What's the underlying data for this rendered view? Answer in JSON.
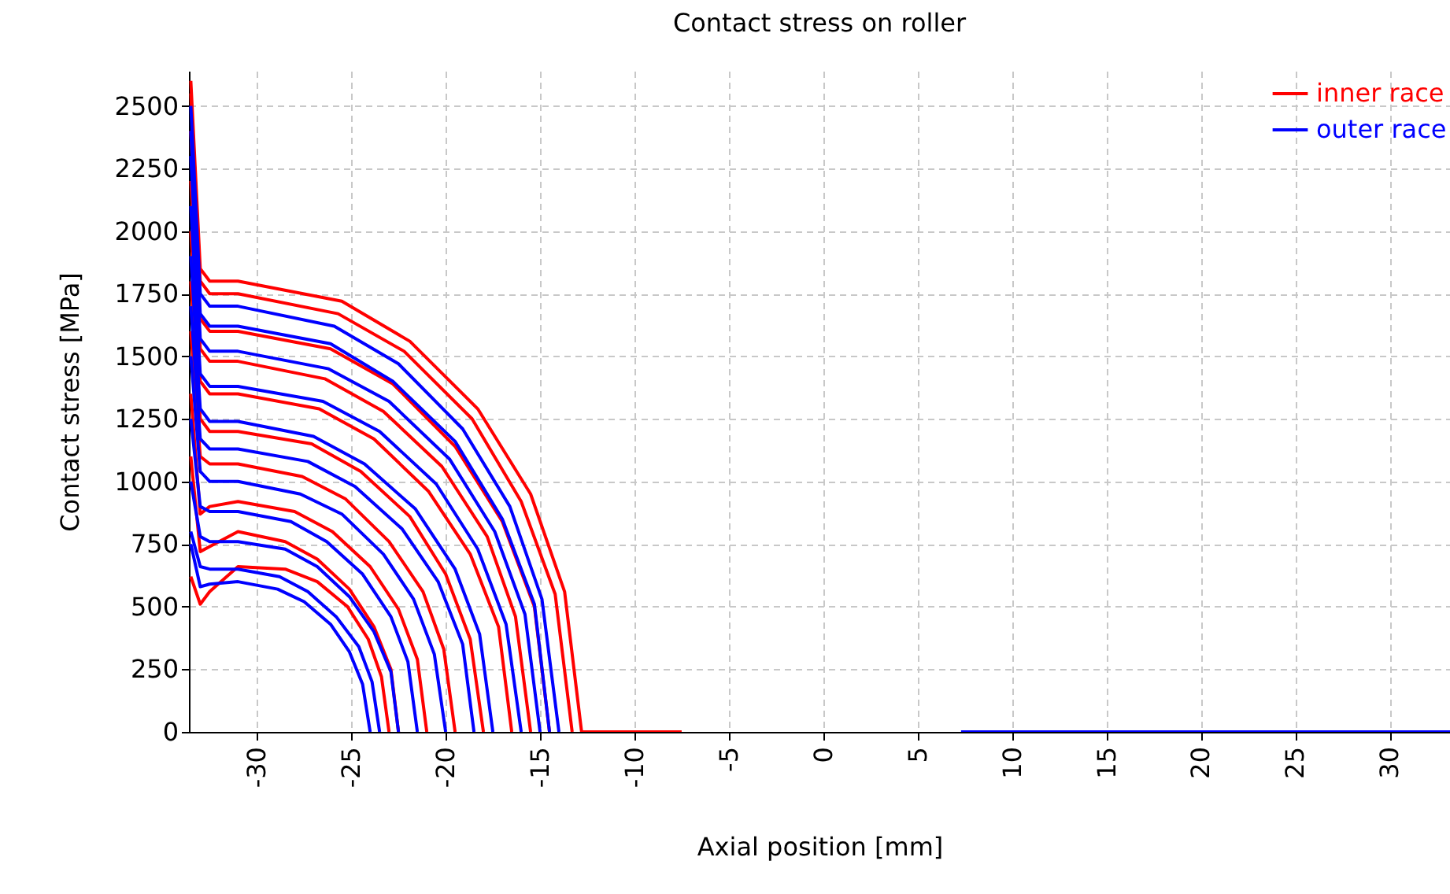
{
  "chart_data": {
    "type": "line",
    "title": "Contact stress on roller",
    "xlabel": "Axial position [mm]",
    "ylabel": "Contact stress [MPa]",
    "xlim": [
      -33.6,
      33.2
    ],
    "ylim": [
      0,
      2640
    ],
    "xticks": [
      -30,
      -25,
      -20,
      -15,
      -10,
      -5,
      0,
      5,
      10,
      15,
      20,
      25,
      30
    ],
    "yticks": [
      0,
      250,
      500,
      750,
      1000,
      1250,
      1500,
      1750,
      2000,
      2250,
      2500
    ],
    "grid": true,
    "legend": "top right",
    "series": [
      {
        "name": "inner race",
        "color": "#ff0000",
        "x": [
          -33.5,
          -33,
          -32.5,
          -31,
          -25.5,
          -21.9,
          -18.3,
          -15.5,
          -13.7,
          -12.8,
          -7.5
        ],
        "values": [
          2600,
          1850,
          1800,
          1800,
          1720,
          1560,
          1290,
          950,
          560,
          0,
          0
        ]
      },
      {
        "color": "#ff0000",
        "x": [
          -33.5,
          -33,
          -32.5,
          -31,
          -25.7,
          -22.2,
          -18.6,
          -16,
          -14.2,
          -13.3
        ],
        "values": [
          2550,
          1800,
          1750,
          1750,
          1670,
          1520,
          1250,
          920,
          550,
          0
        ]
      },
      {
        "color": "#ff0000",
        "x": [
          -33.5,
          -33,
          -32.5,
          -31,
          -26.1,
          -22.8,
          -19.5,
          -17,
          -15.3,
          -14.5
        ],
        "values": [
          2400,
          1650,
          1600,
          1600,
          1530,
          1390,
          1140,
          840,
          500,
          0
        ]
      },
      {
        "color": "#ff0000",
        "x": [
          -33.5,
          -33,
          -32.5,
          -31,
          -26.4,
          -23.3,
          -20.2,
          -17.8,
          -16.3,
          -15.5
        ],
        "values": [
          2200,
          1530,
          1480,
          1480,
          1410,
          1280,
          1060,
          780,
          460,
          0
        ]
      },
      {
        "color": "#ff0000",
        "x": [
          -33.5,
          -33,
          -32.5,
          -31,
          -26.7,
          -23.8,
          -20.9,
          -18.7,
          -17.2,
          -16.5
        ],
        "values": [
          2000,
          1400,
          1350,
          1350,
          1290,
          1170,
          960,
          710,
          420,
          0
        ]
      },
      {
        "color": "#ff0000",
        "x": [
          -33.5,
          -33,
          -32.5,
          -31,
          -27.1,
          -24.5,
          -21.9,
          -20,
          -18.7,
          -18
        ],
        "values": [
          1800,
          1250,
          1200,
          1200,
          1150,
          1040,
          860,
          630,
          370,
          0
        ]
      },
      {
        "color": "#ff0000",
        "x": [
          -33.5,
          -33,
          -32.5,
          -31,
          -27.6,
          -25.3,
          -23,
          -21.2,
          -20.1,
          -19.5
        ],
        "values": [
          1600,
          1100,
          1070,
          1070,
          1020,
          930,
          760,
          560,
          330,
          0
        ]
      },
      {
        "color": "#ff0000",
        "x": [
          -33.5,
          -33,
          -32.5,
          -31,
          -28,
          -26,
          -24,
          -22.5,
          -21.5,
          -21
        ],
        "values": [
          1350,
          870,
          900,
          920,
          880,
          800,
          660,
          490,
          290,
          0
        ]
      },
      {
        "color": "#ff0000",
        "x": [
          -33.5,
          -33,
          -32.5,
          -31,
          -28.5,
          -26.8,
          -25.1,
          -23.8,
          -22.9,
          -22.5
        ],
        "values": [
          1100,
          720,
          740,
          800,
          760,
          690,
          570,
          420,
          250,
          0
        ]
      },
      {
        "color": "#ff0000",
        "x": [
          -33.5,
          -33,
          -32.5,
          -31,
          -28.5,
          -26.8,
          -25.2,
          -24.1,
          -23.4,
          -23
        ],
        "values": [
          620,
          510,
          560,
          660,
          650,
          600,
          500,
          370,
          220,
          0
        ]
      },
      {
        "name": "outer race",
        "color": "#0000ff",
        "x": [
          -33.5,
          -33,
          -32.5,
          -31,
          -25.9,
          -22.5,
          -19.1,
          -16.6,
          -14.9,
          -14
        ],
        "values": [
          2500,
          1750,
          1700,
          1700,
          1620,
          1470,
          1210,
          900,
          530,
          0
        ]
      },
      {
        "color": "#0000ff",
        "x": [
          -33.5,
          -33,
          -32.5,
          -31,
          -26.1,
          -22.8,
          -19.5,
          -17,
          -15.3,
          -14.5
        ],
        "values": [
          2400,
          1670,
          1620,
          1620,
          1550,
          1400,
          1160,
          850,
          510,
          0
        ]
      },
      {
        "color": "#0000ff",
        "x": [
          -33.5,
          -33,
          -32.5,
          -31,
          -26.2,
          -23,
          -19.8,
          -17.4,
          -15.8,
          -15
        ],
        "values": [
          2300,
          1570,
          1520,
          1520,
          1450,
          1320,
          1090,
          800,
          470,
          0
        ]
      },
      {
        "color": "#0000ff",
        "x": [
          -33.5,
          -33,
          -32.5,
          -31,
          -26.5,
          -23.5,
          -20.5,
          -18.3,
          -16.8,
          -16
        ],
        "values": [
          2100,
          1430,
          1380,
          1380,
          1320,
          1200,
          990,
          730,
          430,
          0
        ]
      },
      {
        "color": "#0000ff",
        "x": [
          -33.5,
          -33,
          -32.5,
          -31,
          -27,
          -24.3,
          -21.6,
          -19.5,
          -18.2,
          -17.5
        ],
        "values": [
          1900,
          1290,
          1240,
          1240,
          1180,
          1070,
          890,
          650,
          390,
          0
        ]
      },
      {
        "color": "#0000ff",
        "x": [
          -33.5,
          -33,
          -32.5,
          -31,
          -27.3,
          -24.8,
          -22.3,
          -20.4,
          -19.1,
          -18.5
        ],
        "values": [
          1700,
          1170,
          1130,
          1130,
          1080,
          980,
          810,
          600,
          350,
          0
        ]
      },
      {
        "color": "#0000ff",
        "x": [
          -33.5,
          -33,
          -32.5,
          -31,
          -27.7,
          -25.5,
          -23.3,
          -21.7,
          -20.6,
          -20
        ],
        "values": [
          1500,
          1040,
          1000,
          1000,
          950,
          870,
          710,
          530,
          310,
          0
        ]
      },
      {
        "color": "#0000ff",
        "x": [
          -33.5,
          -33,
          -32.5,
          -31,
          -28.2,
          -26.3,
          -24.4,
          -22.9,
          -22,
          -21.5
        ],
        "values": [
          1250,
          900,
          880,
          880,
          840,
          760,
          630,
          460,
          280,
          0
        ]
      },
      {
        "color": "#0000ff",
        "x": [
          -33.5,
          -33,
          -32.5,
          -31,
          -28.5,
          -26.8,
          -25.1,
          -23.8,
          -22.9,
          -22.5
        ],
        "values": [
          1000,
          780,
          760,
          760,
          730,
          660,
          540,
          400,
          240,
          0
        ]
      },
      {
        "color": "#0000ff",
        "x": [
          -33.5,
          -33,
          -32.5,
          -31,
          -28.8,
          -27.3,
          -25.8,
          -24.6,
          -23.9,
          -23.5
        ],
        "values": [
          800,
          660,
          650,
          650,
          620,
          560,
          460,
          340,
          200,
          0
        ]
      },
      {
        "color": "#0000ff",
        "x": [
          -33.5,
          -33,
          -32.5,
          -31,
          -28.9,
          -27.5,
          -26.1,
          -25.1,
          -24.4,
          -24
        ],
        "values": [
          750,
          580,
          590,
          600,
          570,
          520,
          430,
          320,
          190,
          0
        ]
      },
      {
        "color": "#0000ff",
        "x": [
          7.3,
          33.2
        ],
        "values": [
          0,
          0
        ]
      }
    ]
  }
}
